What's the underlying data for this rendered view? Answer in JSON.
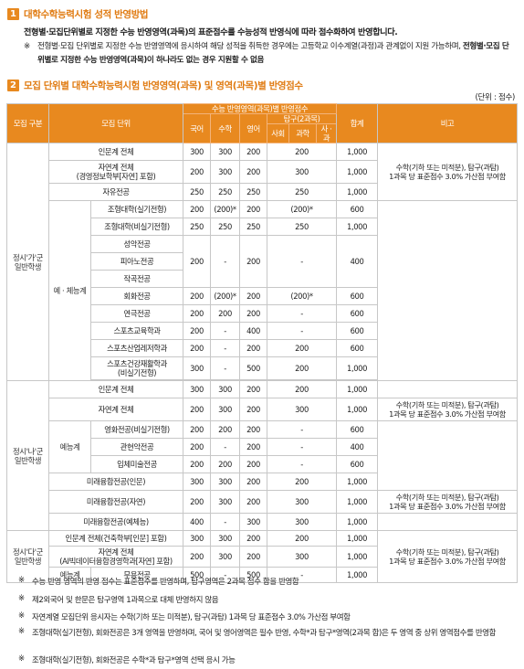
{
  "section1": {
    "num": "1",
    "title": "대학수학능력시험 성적 반영방법",
    "para": "전형별·모집단위별로 지정한 수능 반영영역(과목)의 표준점수를 수능성적 반영식에 따라 점수화하여 반영합니다.",
    "note_mark": "※",
    "note_plain": "전형별·모집 단위별로 지정한 수능 반영영역에 응시하여 해당 성적을 취득한 경우에는 고등학교 이수계열(과정)과 관계없이 지원 가능하며, ",
    "note_bold": "전형별·모집 단위별로 지정한 수능 반영영역(과목)이 하나라도 없는 경우 지원할 수 없음"
  },
  "section2": {
    "num": "2",
    "title": "모집 단위별 대학수학능력시험 반영영역(과목) 및 영역(과목)별 반영점수",
    "unit": "(단위 : 점수)"
  },
  "table": {
    "h_group": "모집 구분",
    "h_unit": "모집 단위",
    "h_suneung": "수능 반영영역(과목)별 반영점수",
    "h_kor": "국어",
    "h_math": "수학",
    "h_eng": "영어",
    "h_tamgu": "탐구(2과목)",
    "h_soc": "사회",
    "h_sci": "과학",
    "h_voc": "사 · 과",
    "h_total": "합계",
    "h_note": "비고",
    "g1": "정시'가'군\n일반학생",
    "g1_sub": "예 · 체능계",
    "g2": "정시'나'군\n일반학생",
    "g2_sub": "예능계",
    "g3": "정시'다'군\n일반학생",
    "note_std": "수학(기하 또는 미적분), 탐구(과탐)\n1과목 당 표준점수 3.0% 가산점 부여함",
    "rows": {
      "r1": {
        "name": "인문계 전체",
        "kor": "300",
        "math": "300",
        "eng": "200",
        "tam": "200",
        "total": "1,000"
      },
      "r2": {
        "name": "자연계 전체\n(경영정보학부[자연] 포함)",
        "kor": "200",
        "math": "300",
        "eng": "200",
        "tam": "300",
        "total": "1,000"
      },
      "r3": {
        "name": "자유전공",
        "kor": "250",
        "math": "250",
        "eng": "250",
        "tam": "250",
        "total": "1,000"
      },
      "r4": {
        "name": "조형대학(실기전형)",
        "kor": "200",
        "math": "(200)*",
        "eng": "200",
        "tam": "(200)*",
        "total": "600"
      },
      "r5": {
        "name": "조형대학(비실기전형)",
        "kor": "250",
        "math": "250",
        "eng": "250",
        "tam": "250",
        "total": "1,000"
      },
      "r6": {
        "name": "성악전공"
      },
      "r7": {
        "name": "피아노전공",
        "kor": "200",
        "math": "-",
        "eng": "200",
        "tam": "-",
        "total": "400"
      },
      "r8": {
        "name": "작곡전공"
      },
      "r9": {
        "name": "회화전공",
        "kor": "200",
        "math": "(200)*",
        "eng": "200",
        "tam": "(200)*",
        "total": "600"
      },
      "r10": {
        "name": "연극전공",
        "kor": "200",
        "math": "200",
        "eng": "200",
        "tam": "-",
        "total": "600"
      },
      "r11": {
        "name": "스포츠교육학과",
        "kor": "200",
        "math": "-",
        "eng": "400",
        "tam": "-",
        "total": "600"
      },
      "r12": {
        "name": "스포츠산업레저학과",
        "kor": "200",
        "math": "-",
        "eng": "200",
        "tam": "200",
        "total": "600"
      },
      "r13": {
        "name": "스포츠건강재활학과\n(비실기전형)",
        "kor": "300",
        "math": "-",
        "eng": "500",
        "tam": "200",
        "total": "1,000"
      },
      "r14": {
        "name": "인문계 전체",
        "kor": "300",
        "math": "300",
        "eng": "200",
        "tam": "200",
        "total": "1,000"
      },
      "r15": {
        "name": "자연계 전체",
        "kor": "200",
        "math": "300",
        "eng": "200",
        "tam": "300",
        "total": "1,000"
      },
      "r16": {
        "name": "영화전공(비실기전형)",
        "kor": "200",
        "math": "200",
        "eng": "200",
        "tam": "-",
        "total": "600"
      },
      "r17": {
        "name": "관현악전공",
        "kor": "200",
        "math": "-",
        "eng": "200",
        "tam": "-",
        "total": "400"
      },
      "r18": {
        "name": "입체미술전공",
        "kor": "200",
        "math": "200",
        "eng": "200",
        "tam": "-",
        "total": "600"
      },
      "r19": {
        "name": "미래융합전공(인문)",
        "kor": "300",
        "math": "300",
        "eng": "200",
        "tam": "200",
        "total": "1,000"
      },
      "r20": {
        "name": "미래융합전공(자연)",
        "kor": "200",
        "math": "300",
        "eng": "200",
        "tam": "300",
        "total": "1,000"
      },
      "r21": {
        "name": "미래융합전공(예체능)",
        "kor": "400",
        "math": "-",
        "eng": "300",
        "tam": "300",
        "total": "1,000"
      },
      "r22": {
        "name": "인문계 전체(건축학부[인문] 포함)",
        "kor": "300",
        "math": "300",
        "eng": "200",
        "tam": "200",
        "total": "1,000"
      },
      "r23": {
        "name": "자연계 전체\n(AI빅데이터융합경영학과[자연] 포함)",
        "kor": "200",
        "math": "300",
        "eng": "200",
        "tam": "300",
        "total": "1,000"
      },
      "r24": {
        "name": "무용전공",
        "kor": "500",
        "math": "-",
        "eng": "500",
        "tam": "-",
        "total": "1,000"
      },
      "g3_r24_label": "예능계"
    }
  },
  "footnotes": [
    {
      "mark": "※",
      "text": "수능 반영 영역의 반영 점수는 표준점수를 반영하며, 탐구영역은 2과목 점수 합을 반영함"
    },
    {
      "mark": "※",
      "text": "제2외국어 및 한문은 탐구영역 1과목으로 대체 반영하지 않음"
    },
    {
      "mark": "※",
      "text": "자연계열 모집단위 응시자는 수학(기하 또는 미적분), 탐구(과탐) 1과목 당 표준점수 3.0% 가산점 부여함"
    },
    {
      "mark": "※",
      "text": "조형대학(실기전형), 회화전공은 3개 영역을 반영하며, 국어 및 영어영역은 필수 반영, 수학*과 탐구*영역(2과목 합)은 두 영역 중 상위 영역점수를 반영함"
    },
    {
      "mark": "※",
      "text": "조형대학(실기전형), 회화전공은 수학*과 탐구*영역 선택 응시 가능"
    }
  ],
  "colors": {
    "accent": "#e8891f",
    "title": "#e07b12"
  }
}
